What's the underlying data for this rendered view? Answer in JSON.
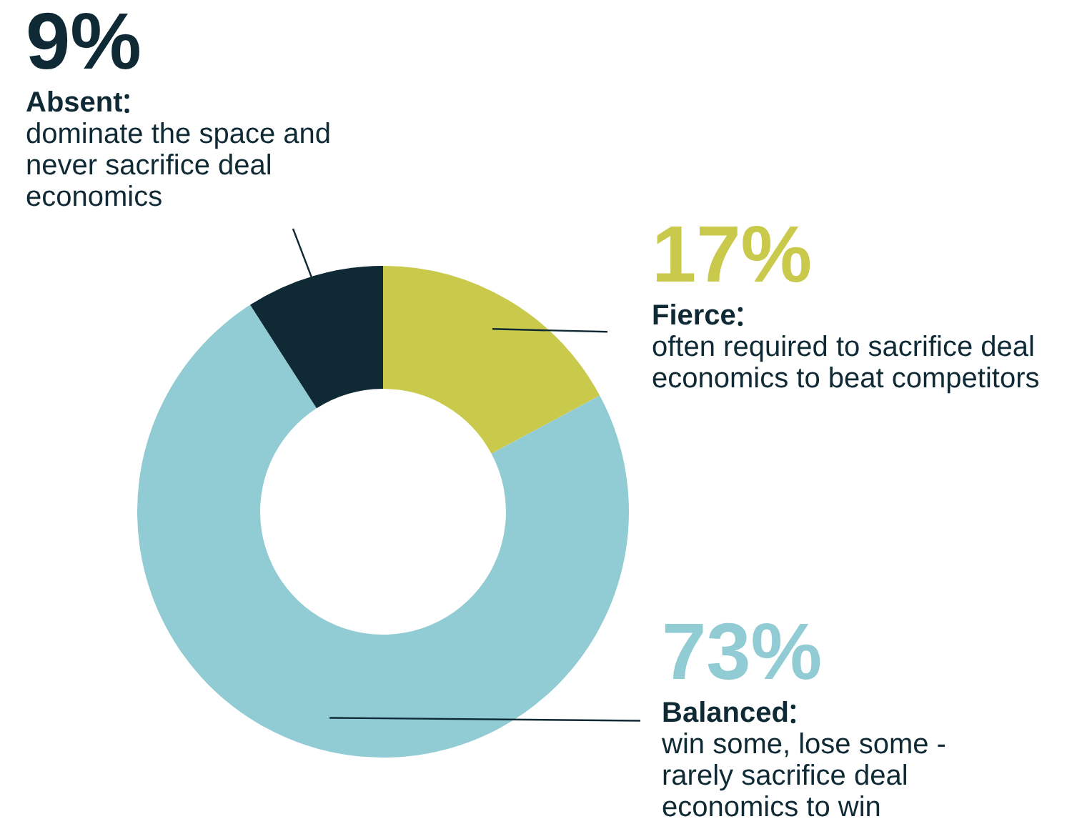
{
  "chart_data": {
    "type": "donut",
    "categories": [
      "Fierce",
      "Balanced",
      "Absent"
    ],
    "values": [
      17,
      73,
      9
    ],
    "value_labels": [
      "17%",
      "73%",
      "9%"
    ],
    "colors": [
      "#c9c94b",
      "#91cbd4",
      "#0f2a35"
    ],
    "annotations": [
      "often required to sacrifice deal economics to beat competitors",
      "win some, lose some - rarely sacrifice deal economics to win",
      "dominate the space and never sacrifice deal economics"
    ]
  }
}
